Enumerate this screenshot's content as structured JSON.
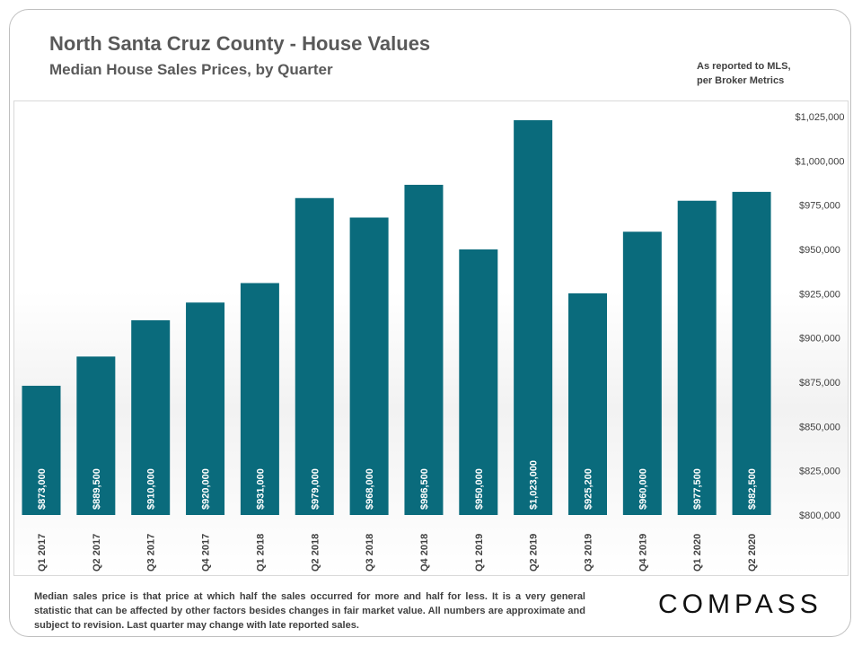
{
  "header": {
    "title": "North Santa Cruz County - House Values",
    "subtitle": "Median House Sales Prices, by Quarter",
    "source_line1": "As reported to MLS,",
    "source_line2": "per Broker Metrics"
  },
  "footer": {
    "note": "Median sales price is that price at which half the sales occurred for more and half for less. It is a very general statistic that can be affected by other factors besides changes in fair market value. All numbers are approximate and subject to revision. Last quarter may change with late reported sales.",
    "brand": "COMPASS"
  },
  "colors": {
    "bar": "#0a6b7c",
    "bar_label": "#ffffff",
    "axis_text": "#404040"
  },
  "chart_data": {
    "type": "bar",
    "title": "North Santa Cruz County - House Values",
    "subtitle": "Median House Sales Prices, by Quarter",
    "categories": [
      "Q1 2017",
      "Q2 2017",
      "Q3 2017",
      "Q4 2017",
      "Q1 2018",
      "Q2 2018",
      "Q3 2018",
      "Q4 2018",
      "Q1 2019",
      "Q2 2019",
      "Q3 2019",
      "Q4 2019",
      "Q1 2020",
      "Q2 2020"
    ],
    "values": [
      873000,
      889500,
      910000,
      920000,
      931000,
      979000,
      968000,
      986500,
      950000,
      1023000,
      925200,
      960000,
      977500,
      982500
    ],
    "data_labels": [
      "$873,000",
      "$889,500",
      "$910,000",
      "$920,000",
      "$931,000",
      "$979,000",
      "$968,000",
      "$986,500",
      "$950,000",
      "$1,023,000",
      "$925,200",
      "$960,000",
      "$977,500",
      "$982,500"
    ],
    "ylim": [
      800000,
      1025000
    ],
    "yticks": [
      800000,
      825000,
      850000,
      875000,
      900000,
      925000,
      950000,
      975000,
      1000000,
      1025000
    ],
    "ytick_labels": [
      "$800,000",
      "$825,000",
      "$850,000",
      "$875,000",
      "$900,000",
      "$925,000",
      "$950,000",
      "$975,000",
      "$1,000,000",
      "$1,025,000"
    ],
    "y_axis_side": "right",
    "grid": false,
    "legend": "none"
  }
}
